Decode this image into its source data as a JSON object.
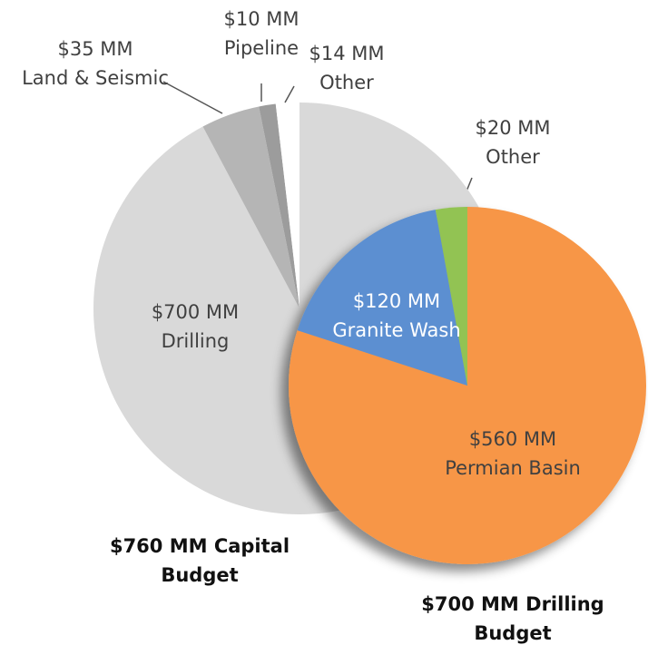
{
  "chart_data": [
    {
      "type": "pie",
      "title": "$760 MM Capital Budget",
      "categories": [
        "Drilling",
        "Land & Seismic",
        "Pipeline",
        "Other"
      ],
      "values": [
        700,
        35,
        10,
        14
      ],
      "value_labels": [
        "$700 MM",
        "$35 MM",
        "$10 MM",
        "$14 MM"
      ],
      "colors": [
        "#d9d9d9",
        "#b5b5b5",
        "#9c9c9c",
        "#ffffff"
      ]
    },
    {
      "type": "pie",
      "title": "$700 MM Drilling Budget",
      "categories": [
        "Permian Basin",
        "Granite Wash",
        "Other"
      ],
      "values": [
        560,
        120,
        20
      ],
      "value_labels": [
        "$560 MM",
        "$120 MM",
        "$20 MM"
      ],
      "colors": [
        "#f79646",
        "#5b8fd1",
        "#92c353"
      ]
    }
  ]
}
